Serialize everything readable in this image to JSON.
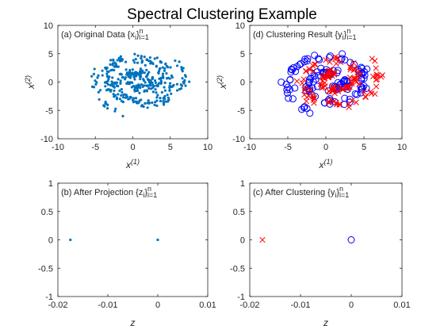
{
  "figure_title": "Spectral Clustering Example",
  "colors": {
    "data": "#0072BD",
    "cluster_outer": "#0000FF",
    "cluster_inner": "#FF0000"
  },
  "chart_data": [
    {
      "id": "a",
      "type": "scatter",
      "title_text": "(a) Original Data {x",
      "title_sub": "i",
      "title_tail": "}",
      "title_limits": {
        "sup": "n",
        "sub": "i=1"
      },
      "xlabel": "x",
      "xlabel_sup": "(1)",
      "ylabel": "x",
      "ylabel_sup": "(2)",
      "xlim": [
        -10,
        10
      ],
      "ylim": [
        -10,
        10
      ],
      "xticks": [
        -10,
        -5,
        0,
        5,
        10
      ],
      "yticks": [
        -10,
        -5,
        0,
        5,
        10
      ],
      "x_tick_labels": [
        "-10",
        "-5",
        "0",
        "5",
        "10"
      ],
      "y_tick_labels": [
        "-10",
        "-5",
        "0",
        "5",
        "10"
      ],
      "grid": false,
      "series": [
        {
          "marker": "dot",
          "color": "#0072BD",
          "shape": "spiral",
          "param": {
            "spiral": "inner",
            "t_range": [
              1.5,
              13.3
            ],
            "n": 200
          }
        },
        {
          "marker": "dot",
          "color": "#0072BD",
          "shape": "spiral",
          "param": {
            "spiral": "outer",
            "t_range": [
              1.6,
              13.8
            ],
            "n": 200
          }
        }
      ]
    },
    {
      "id": "d",
      "type": "scatter",
      "title_text": "(d) Clustering Result {y",
      "title_sub": "i",
      "title_tail": "}",
      "title_limits": {
        "sup": "n",
        "sub": "i=1"
      },
      "xlabel": "x",
      "xlabel_sup": "(1)",
      "ylabel": "x",
      "ylabel_sup": "(2)",
      "xlim": [
        -10,
        10
      ],
      "ylim": [
        -10,
        10
      ],
      "xticks": [
        -10,
        -5,
        0,
        5,
        10
      ],
      "yticks": [
        -10,
        -5,
        0,
        5,
        10
      ],
      "x_tick_labels": [
        "-10",
        "-5",
        "0",
        "5",
        "10"
      ],
      "y_tick_labels": [
        "-10",
        "-5",
        "0",
        "5",
        "10"
      ],
      "grid": false,
      "series": [
        {
          "marker": "circle",
          "color": "#0000FF",
          "shape": "spiral",
          "param": {
            "spiral": "outer",
            "t_range": [
              1.6,
              13.8
            ],
            "n": 130
          }
        },
        {
          "marker": "cross",
          "color": "#FF0000",
          "shape": "spiral",
          "param": {
            "spiral": "inner",
            "t_range": [
              1.5,
              13.3
            ],
            "n": 130
          }
        }
      ]
    },
    {
      "id": "b",
      "type": "scatter",
      "title_text": "(b) After Projection {z",
      "title_sub": "i",
      "title_tail": "}",
      "title_limits": {
        "sup": "n",
        "sub": "i=1"
      },
      "xlabel": "z",
      "xlabel_sup": "",
      "ylabel": "",
      "ylabel_sup": "",
      "xlim": [
        -0.02,
        0.01
      ],
      "ylim": [
        -1,
        1
      ],
      "xticks": [
        -0.02,
        -0.01,
        0,
        0.01
      ],
      "yticks": [
        -1,
        -0.5,
        0,
        0.5,
        1
      ],
      "x_tick_labels": [
        "-0.02",
        "-0.01",
        "0",
        "0.01"
      ],
      "y_tick_labels": [
        "-1",
        "-0.5",
        "0",
        "0.5",
        "1"
      ],
      "grid": false,
      "series": [
        {
          "marker": "dot",
          "color": "#0072BD",
          "points": [
            [
              -0.0175,
              0
            ],
            [
              0,
              0
            ]
          ]
        }
      ]
    },
    {
      "id": "c",
      "type": "scatter",
      "title_text": "(c) After Clustering {y",
      "title_sub": "i",
      "title_tail": "}",
      "title_limits": {
        "sup": "n",
        "sub": "i=1"
      },
      "xlabel": "z",
      "xlabel_sup": "",
      "ylabel": "",
      "ylabel_sup": "",
      "xlim": [
        -0.02,
        0.01
      ],
      "ylim": [
        -1,
        1
      ],
      "xticks": [
        -0.02,
        -0.01,
        0,
        0.01
      ],
      "yticks": [
        -1,
        -0.5,
        0,
        0.5,
        1
      ],
      "x_tick_labels": [
        "-0.02",
        "-0.01",
        "0",
        "0.01"
      ],
      "y_tick_labels": [
        "-1",
        "-0.5",
        "0",
        "0.5",
        "1"
      ],
      "grid": false,
      "series": [
        {
          "marker": "cross",
          "color": "#FF0000",
          "points": [
            [
              -0.0175,
              0
            ]
          ]
        },
        {
          "marker": "circle",
          "color": "#0000FF",
          "points": [
            [
              0,
              0
            ]
          ]
        }
      ]
    }
  ]
}
